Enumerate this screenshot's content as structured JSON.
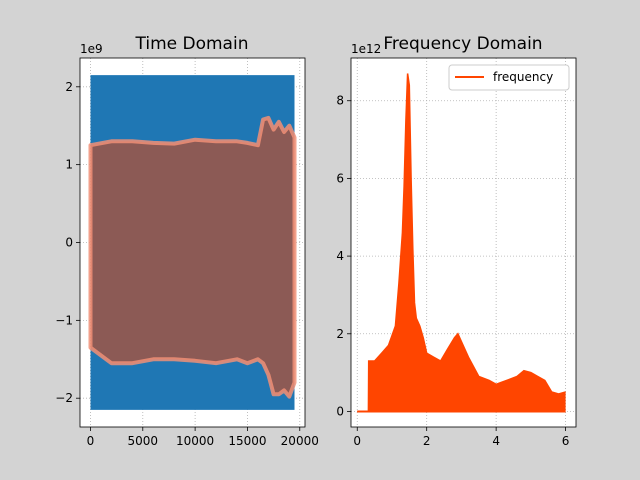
{
  "chart_data": [
    {
      "type": "area",
      "title": "Time Domain",
      "offset_text": "1e9",
      "xlim": [
        -1000,
        20500
      ],
      "ylim": [
        -2.37,
        2.37
      ],
      "x_ticks": [
        0,
        5000,
        10000,
        15000,
        20000
      ],
      "x_tick_labels": [
        "0",
        "5000",
        "10000",
        "15000",
        "20000"
      ],
      "y_ticks": [
        2,
        1,
        0,
        -1,
        -2
      ],
      "y_tick_labels": [
        "2",
        "1",
        "0",
        "−1",
        "−2"
      ],
      "grid": true,
      "legend": "none",
      "colors": {
        "signal": "#1f77b4",
        "overlay": "#8c5a55",
        "overlay_edge": "#f08f77"
      },
      "series": [
        {
          "role": "signal",
          "x": [
            0,
            19500
          ],
          "upper": [
            2.15,
            2.15
          ],
          "lower": [
            -2.15,
            -2.15
          ]
        },
        {
          "role": "overlay",
          "x": [
            0,
            2000,
            4000,
            6000,
            8000,
            10000,
            12000,
            14000,
            15000,
            16000,
            16500,
            17000,
            17500,
            18000,
            18500,
            19000,
            19500
          ],
          "upper": [
            1.25,
            1.3,
            1.3,
            1.28,
            1.27,
            1.32,
            1.3,
            1.3,
            1.28,
            1.25,
            1.58,
            1.6,
            1.45,
            1.55,
            1.42,
            1.5,
            1.35
          ],
          "lower": [
            -1.35,
            -1.55,
            -1.55,
            -1.5,
            -1.5,
            -1.52,
            -1.55,
            -1.5,
            -1.55,
            -1.5,
            -1.55,
            -1.7,
            -1.95,
            -1.95,
            -1.9,
            -1.98,
            -1.8
          ]
        }
      ]
    },
    {
      "type": "line",
      "title": "Frequency Domain",
      "offset_text": "1e12",
      "xlim": [
        -0.18,
        6.3
      ],
      "ylim": [
        -0.4,
        9.1
      ],
      "x_ticks": [
        0,
        2,
        4,
        6
      ],
      "x_tick_labels": [
        "0",
        "2",
        "4",
        "6"
      ],
      "y_ticks": [
        0,
        2,
        4,
        6,
        8
      ],
      "y_tick_labels": [
        "0",
        "2",
        "4",
        "6",
        "8"
      ],
      "grid": true,
      "legend": "top-right",
      "colors": {
        "frequency": "#ff4500"
      },
      "series": [
        {
          "name": "frequency",
          "x": [
            0,
            0.32,
            0.33,
            0.5,
            0.7,
            0.9,
            1.1,
            1.2,
            1.3,
            1.35,
            1.4,
            1.45,
            1.5,
            1.55,
            1.6,
            1.65,
            1.7,
            1.8,
            1.9,
            2.0,
            2.2,
            2.4,
            2.6,
            2.8,
            2.9,
            3.0,
            3.2,
            3.5,
            3.8,
            4.0,
            4.3,
            4.6,
            4.8,
            5.0,
            5.2,
            5.4,
            5.6,
            5.8,
            6.0
          ],
          "values": [
            0,
            0,
            1.3,
            1.3,
            1.5,
            1.7,
            2.2,
            3.3,
            4.6,
            5.8,
            7.5,
            8.7,
            8.4,
            6.0,
            4.2,
            2.8,
            2.4,
            2.2,
            1.9,
            1.5,
            1.4,
            1.3,
            1.6,
            1.9,
            2.0,
            1.8,
            1.4,
            0.9,
            0.8,
            0.7,
            0.8,
            0.9,
            1.05,
            1.0,
            0.9,
            0.8,
            0.5,
            0.45,
            0.5
          ]
        }
      ]
    }
  ]
}
